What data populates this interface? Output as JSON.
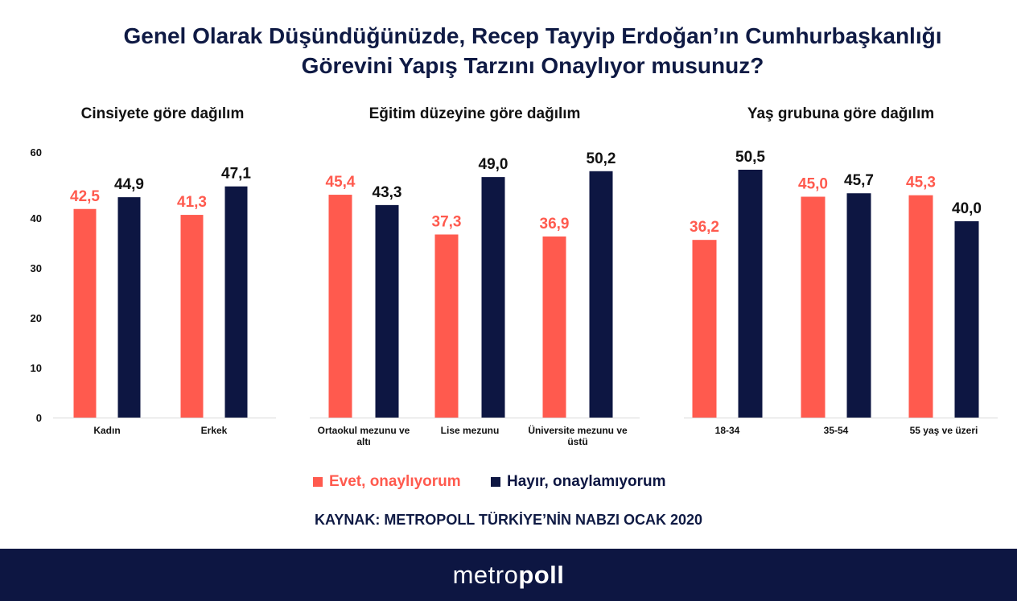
{
  "title": {
    "line1": "Genel Olarak Düşündüğünüzde, Recep Tayyip Erdoğan’ın Cumhurbaşkanlığı",
    "line2": "Görevini Yapış Tarzını Onaylıyor musunuz?"
  },
  "colors": {
    "evet": "#ff5a4e",
    "hayir": "#0d1642",
    "axis": "#d9d9d9"
  },
  "legend": {
    "evet": "Evet, onaylıyorum",
    "hayir": "Hayır, onaylamıyorum"
  },
  "source": "KAYNAK: METROPOLL TÜRKİYE’NİN NABZI OCAK 2020",
  "logo": {
    "part1": "metro",
    "part2": "poll"
  },
  "chart_data": [
    {
      "type": "bar",
      "title": "Cinsiyete göre dağılım",
      "categories": [
        "Kadın",
        "Erkek"
      ],
      "series": [
        {
          "name": "Evet, onaylıyorum",
          "values": [
            42.5,
            41.3
          ],
          "labels": [
            "42,5",
            "41,3"
          ]
        },
        {
          "name": "Hayır, onaylamıyorum",
          "values": [
            44.9,
            47.1
          ],
          "labels": [
            "44,9",
            "47,1"
          ]
        }
      ],
      "yticks": [
        "0",
        "10",
        "20",
        "30",
        "40",
        "60"
      ],
      "legend": "bottom"
    },
    {
      "type": "bar",
      "title": "Eğitim düzeyine göre dağılım",
      "categories": [
        "Ortaokul mezunu ve altı",
        "Lise mezunu",
        "Üniversite mezunu ve üstü"
      ],
      "series": [
        {
          "name": "Evet, onaylıyorum",
          "values": [
            45.4,
            37.3,
            36.9
          ],
          "labels": [
            "45,4",
            "37,3",
            "36,9"
          ]
        },
        {
          "name": "Hayır, onaylamıyorum",
          "values": [
            43.3,
            49.0,
            50.2
          ],
          "labels": [
            "43,3",
            "49,0",
            "50,2"
          ]
        }
      ],
      "legend": "bottom"
    },
    {
      "type": "bar",
      "title": "Yaş grubuna göre dağılım",
      "categories": [
        "18-34",
        "35-54",
        "55 yaş ve üzeri"
      ],
      "series": [
        {
          "name": "Evet, onaylıyorum",
          "values": [
            36.2,
            45.0,
            45.3
          ],
          "labels": [
            "36,2",
            "45,0",
            "45,3"
          ]
        },
        {
          "name": "Hayır, onaylamıyorum",
          "values": [
            50.5,
            45.7,
            40.0
          ],
          "labels": [
            "50,5",
            "45,7",
            "40,0"
          ]
        }
      ],
      "legend": "bottom"
    }
  ]
}
